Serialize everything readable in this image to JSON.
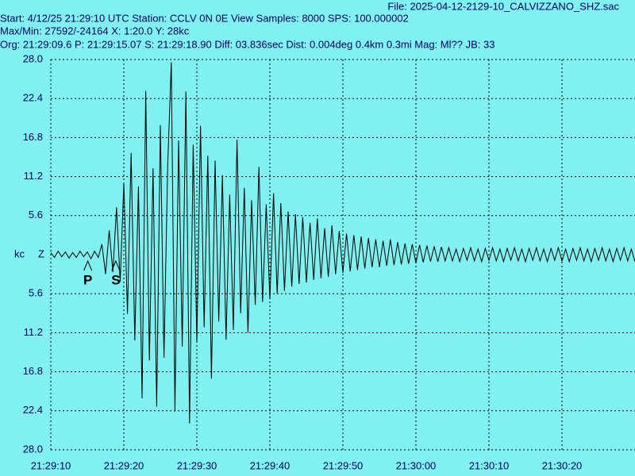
{
  "chart_data": {
    "type": "line",
    "header": {
      "file": "File: 2025-04-12-2129-10_CALVIZZANO_SHZ.sac",
      "start": "Start: 4/12/25 21:29:10 UTC Station: CCLV 0N 0E View Samples: 8000  SPS: 100.000002",
      "maxmin": "Max/Min: 27592/-24164 X: 1:20.0 Y: 28kc",
      "org": "Org: 21:29:09.6 P: 21:29:15.07 S: 21:29:18.90 Diff: 03.836sec Dist: 0.004deg 0.4km 0.3mi  Mag: Ml?? JB: 33"
    },
    "ylabel": "kc",
    "component": "Z",
    "phases": [
      {
        "label": "P",
        "x": 5.07
      },
      {
        "label": "S",
        "x": 8.9
      }
    ],
    "xlim": [
      0,
      80
    ],
    "xticks": [
      {
        "value": 0,
        "label": "21:29:10"
      },
      {
        "value": 10,
        "label": "21:29:20"
      },
      {
        "value": 20,
        "label": "21:29:30"
      },
      {
        "value": 30,
        "label": "21:29:40"
      },
      {
        "value": 40,
        "label": "21:29:50"
      },
      {
        "value": 50,
        "label": "21:30:00"
      },
      {
        "value": 60,
        "label": "21:30:10"
      },
      {
        "value": 70,
        "label": "21:30:20"
      }
    ],
    "ylim": [
      -28,
      28
    ],
    "yticks": [
      {
        "value": -28,
        "label": "28.0"
      },
      {
        "value": -22.4,
        "label": "22.4"
      },
      {
        "value": -16.8,
        "label": "16.8"
      },
      {
        "value": -11.2,
        "label": "11.2"
      },
      {
        "value": -5.6,
        "label": "5.6"
      },
      5.6,
      11.2,
      16.8,
      22.4,
      {
        "value": 28,
        "label": "28.0"
      }
    ],
    "grid": true,
    "background": "#80f0f0",
    "series": [
      {
        "color": "#000000",
        "x": [
          0,
          0.5,
          1,
          1.5,
          2,
          2.5,
          3,
          3.5,
          4,
          4.5,
          5,
          5.5,
          6,
          6.5,
          7,
          7.5,
          8,
          8.5,
          9,
          9.5,
          10,
          10.5,
          11,
          11.5,
          12,
          12.5,
          13,
          13.5,
          14,
          14.5,
          15,
          15.5,
          16,
          16.5,
          17,
          17.5,
          18,
          18.5,
          19,
          19.5,
          20,
          20.5,
          21,
          21.5,
          22,
          22.5,
          23,
          23.5,
          24,
          24.5,
          25,
          25.5,
          26,
          26.5,
          27,
          27.5,
          28,
          28.5,
          29,
          29.5,
          30,
          30.5,
          31,
          31.5,
          32,
          32.5,
          33,
          33.5,
          34,
          34.5,
          35,
          35.5,
          36,
          36.5,
          37,
          37.5,
          38,
          38.5,
          39,
          39.5,
          40,
          40.5,
          41,
          41.5,
          42,
          42.5,
          43,
          43.5,
          44,
          44.5,
          45,
          45.5,
          46,
          46.5,
          47,
          47.5,
          48,
          48.5,
          49,
          49.5,
          50,
          50.5,
          51,
          51.5,
          52,
          52.5,
          53,
          53.5,
          54,
          54.5,
          55,
          55.5,
          56,
          56.5,
          57,
          57.5,
          58,
          58.5,
          59,
          59.5,
          60,
          60.5,
          61,
          61.5,
          62,
          62.5,
          63,
          63.5,
          64,
          64.5,
          65,
          65.5,
          66,
          66.5,
          67,
          67.5,
          68,
          68.5,
          69,
          69.5,
          70,
          70.5,
          71,
          71.5,
          72,
          72.5,
          73,
          73.5,
          74,
          74.5,
          75,
          75.5,
          76,
          76.5,
          77,
          77.5,
          78,
          78.5,
          79,
          79.5,
          80
        ],
        "values": [
          0.3,
          -0.4,
          0.5,
          -0.3,
          0.4,
          -0.5,
          0.3,
          -0.4,
          0.5,
          -0.3,
          0.4,
          -0.6,
          0.5,
          -0.4,
          1.5,
          -2.8,
          3.5,
          -2.5,
          6.8,
          -3.9,
          10.2,
          -8.5,
          14.6,
          -12.3,
          9.8,
          -20.6,
          23.5,
          -15.2,
          12.4,
          -21.8,
          18.6,
          -14.8,
          12.5,
          27.6,
          -22.5,
          16.4,
          -13.2,
          23.4,
          -24.2,
          15.8,
          -12.6,
          18.5,
          -10.4,
          14.2,
          -17.8,
          13.5,
          -9.6,
          11.4,
          -12.2,
          8.6,
          -10.8,
          16.5,
          -8.4,
          9.6,
          -11.2,
          7.8,
          -7.2,
          12.6,
          -6.8,
          7.2,
          -6.4,
          8.8,
          -5.6,
          7.4,
          -5.2,
          6.2,
          -4.6,
          5.8,
          -4.2,
          5.4,
          -4.0,
          4.6,
          -3.6,
          5.2,
          -3.4,
          3.8,
          -3.2,
          4.2,
          -2.8,
          3.4,
          -2.6,
          3.0,
          -2.4,
          2.8,
          -2.2,
          2.6,
          -2.0,
          2.4,
          -1.8,
          2.2,
          -1.8,
          2.0,
          -1.6,
          2.2,
          -1.5,
          1.8,
          -1.4,
          1.6,
          -1.3,
          1.5,
          -1.2,
          1.4,
          -1.1,
          1.3,
          -1.0,
          1.2,
          -1.0,
          1.1,
          -0.9,
          1.0,
          -0.9,
          0.8,
          -1.0,
          0.9,
          -0.8,
          1.0,
          -0.9,
          0.8,
          -1.0,
          0.9,
          -0.8,
          1.0,
          -0.9,
          0.8,
          -1.0,
          0.9,
          -0.8,
          1.0,
          -0.9,
          0.8,
          -1.0,
          0.9,
          -0.8,
          1.0,
          -0.9,
          0.8,
          -1.0,
          0.9,
          -0.8,
          1.0,
          -0.9,
          0.8,
          -1.0,
          0.9,
          -0.8,
          1.0,
          -0.9,
          0.8,
          -1.0,
          0.9,
          -0.8,
          1.0,
          -0.9,
          0.8,
          -1.0,
          0.9,
          -0.8,
          1.0,
          -0.9,
          0.8,
          -1.0
        ]
      }
    ]
  }
}
